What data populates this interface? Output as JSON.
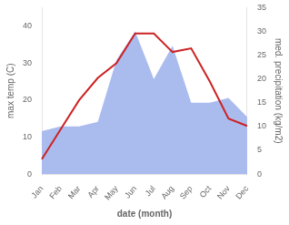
{
  "chart_data": {
    "type": "line",
    "xlabel": "date (month)",
    "ylabel": "max temp (C)",
    "y2label": "med. precipitation (kg/m2)",
    "categories": [
      "Jan",
      "Feb",
      "Mar",
      "Apr",
      "May",
      "Jun",
      "Jul",
      "Aug",
      "Sep",
      "Oct",
      "Nov",
      "Dec"
    ],
    "series": [
      {
        "type": "line",
        "color": "#cc2222",
        "values": [
          4,
          12,
          20,
          26,
          30,
          38,
          38,
          33,
          34,
          25,
          15,
          13
        ]
      },
      {
        "type": "area",
        "color": "#aabbee",
        "axis": "y2",
        "values": [
          9,
          10,
          10,
          11,
          24,
          30,
          20,
          27,
          15,
          15,
          16,
          12
        ]
      }
    ],
    "ylim": [
      0,
      45
    ],
    "yticks": [
      0,
      10,
      20,
      30,
      40
    ],
    "y2lim": [
      0,
      35
    ],
    "y2ticks": [
      0,
      5,
      10,
      15,
      20,
      25,
      30,
      35
    ],
    "grid": false
  }
}
